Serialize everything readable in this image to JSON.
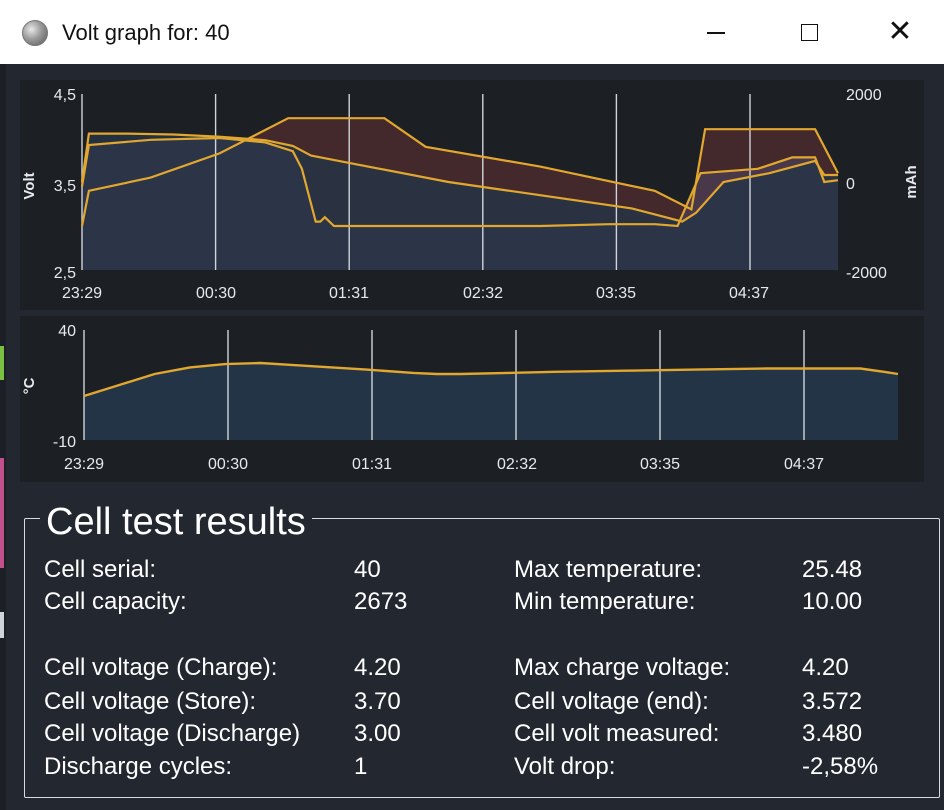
{
  "window": {
    "title": "Volt graph for: 40",
    "icon": "app-globe-icon"
  },
  "colors": {
    "background": "#232830",
    "panel": "#1c1f24",
    "line": "#e2a72e",
    "charge_fill": "#4a2a2e",
    "capacity_fill": "#243447",
    "voltage_fill": "#4a3a4c",
    "grid": "#d0d4da",
    "text": "#ffffff"
  },
  "chart_data": [
    {
      "type": "line",
      "y_axis_label": "Volt",
      "y2_axis_label": "mAh",
      "y_ticks": [
        "4,5",
        "3,5",
        "2,5"
      ],
      "y2_ticks": [
        "2000",
        "0",
        "-2000"
      ],
      "ylim": [
        2.5,
        4.5
      ],
      "y2lim": [
        -2000,
        2000
      ],
      "x_tick_labels": [
        "23:29",
        "00:30",
        "01:31",
        "02:32",
        "03:35",
        "04:37"
      ],
      "series": [
        {
          "role": "voltage",
          "x_minutes": [
            0,
            3,
            30,
            60,
            80,
            92,
            96,
            102,
            104,
            106,
            110,
            120,
            160,
            200,
            230,
            250,
            260,
            270,
            295,
            310,
            320,
            324,
            330
          ],
          "values": [
            3.45,
            3.92,
            3.98,
            4.0,
            3.95,
            3.85,
            3.65,
            3.05,
            3.05,
            3.1,
            3.0,
            3.0,
            3.0,
            3.0,
            3.02,
            3.02,
            3.0,
            3.6,
            3.65,
            3.78,
            3.78,
            3.5,
            3.52
          ]
        },
        {
          "role": "capacity",
          "x_minutes": [
            0,
            3,
            20,
            40,
            60,
            80,
            92,
            100,
            120,
            160,
            200,
            240,
            262,
            268,
            280,
            300,
            320,
            324,
            330
          ],
          "values": [
            0,
            1100,
            1100,
            1080,
            1030,
            950,
            820,
            600,
            400,
            0,
            -300,
            -600,
            -900,
            -700,
            0,
            200,
            480,
            160,
            160
          ]
        },
        {
          "role": "charge_level",
          "x_minutes": [
            0,
            3,
            30,
            60,
            90,
            132,
            150,
            200,
            250,
            266,
            272,
            320,
            330
          ],
          "values": [
            -1000,
            -200,
            100,
            650,
            1450,
            1450,
            800,
            350,
            -200,
            -620,
            1200,
            1200,
            200
          ]
        }
      ]
    },
    {
      "type": "area",
      "y_axis_label": "°C",
      "y_ticks": [
        "40",
        "-10"
      ],
      "ylim": [
        -10,
        40
      ],
      "x_tick_labels": [
        "23:29",
        "00:30",
        "01:31",
        "02:32",
        "03:35",
        "04:37"
      ],
      "series": [
        {
          "role": "temperature",
          "x_minutes": [
            0,
            15,
            30,
            45,
            60,
            75,
            90,
            120,
            140,
            150,
            160,
            180,
            200,
            230,
            260,
            290,
            310,
            330,
            340,
            346
          ],
          "values": [
            10,
            15,
            20,
            23,
            24.5,
            25,
            24,
            22,
            20.5,
            20,
            20,
            20.5,
            21,
            21.5,
            22,
            22.5,
            22.5,
            22.5,
            21,
            20
          ]
        }
      ]
    }
  ],
  "results": {
    "title": "Cell test results",
    "left": [
      {
        "label": "Cell serial:",
        "value": "40"
      },
      {
        "label": "Cell capacity:",
        "value": "2673"
      },
      {
        "label": "Cell voltage (Charge):",
        "value": "4.20"
      },
      {
        "label": "Cell voltage (Store):",
        "value": "3.70"
      },
      {
        "label": "Cell voltage (Discharge)",
        "value": "3.00"
      },
      {
        "label": "Discharge cycles:",
        "value": "1"
      }
    ],
    "right": [
      {
        "label": "Max temperature:",
        "value": "25.48"
      },
      {
        "label": "Min temperature:",
        "value": "10.00"
      },
      {
        "label": "Max charge voltage:",
        "value": "4.20"
      },
      {
        "label": "Cell voltage (end):",
        "value": "3.572"
      },
      {
        "label": "Cell volt measured:",
        "value": "3.480"
      },
      {
        "label": "Volt drop:",
        "value": "-2,58%"
      }
    ]
  }
}
